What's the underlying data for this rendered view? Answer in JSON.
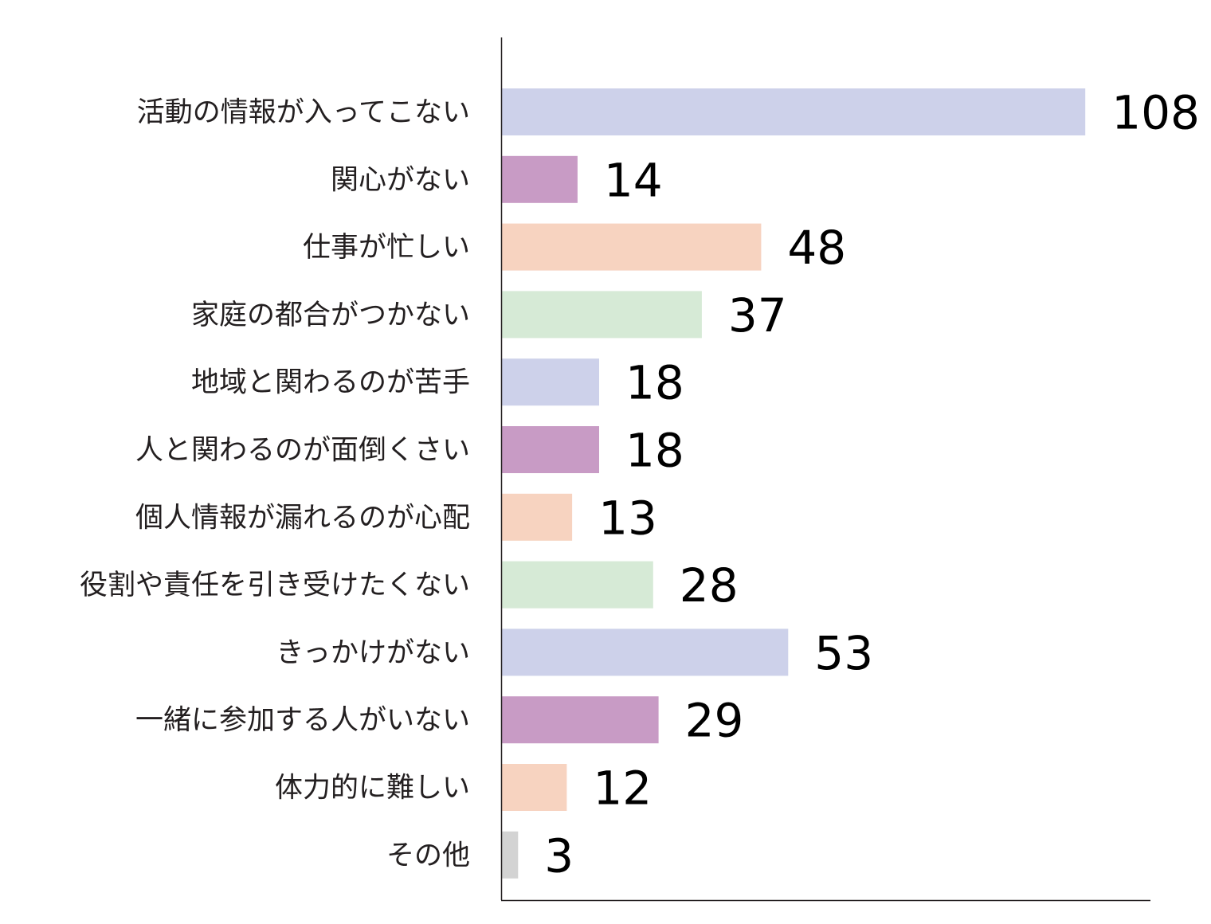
{
  "chart_data": {
    "type": "bar",
    "orientation": "horizontal",
    "title": "",
    "xlabel": "",
    "ylabel": "",
    "categories": [
      "活動の情報が入ってこない",
      "関心がない",
      "仕事が忙しい",
      "家庭の都合がつかない",
      "地域と関わるのが苦手",
      "人と関わるのが面倒くさい",
      "個人情報が漏れるのが心配",
      "役割や責任を引き受けたくない",
      "きっかけがない",
      "一緒に参加する人がいない",
      "体力的に難しい",
      "その他"
    ],
    "values": [
      108,
      14,
      48,
      37,
      18,
      18,
      13,
      28,
      53,
      29,
      12,
      3
    ],
    "colors": [
      "#cdd1ea",
      "#c89bc5",
      "#f7d3c0",
      "#d6ead6",
      "#cdd1ea",
      "#c89bc5",
      "#f7d3c0",
      "#d6ead6",
      "#cdd1ea",
      "#c89bc5",
      "#f7d3c0",
      "#d3d3d3"
    ],
    "xlim": [
      0,
      120
    ],
    "grid": false,
    "legend": "none",
    "data_labels": true
  }
}
